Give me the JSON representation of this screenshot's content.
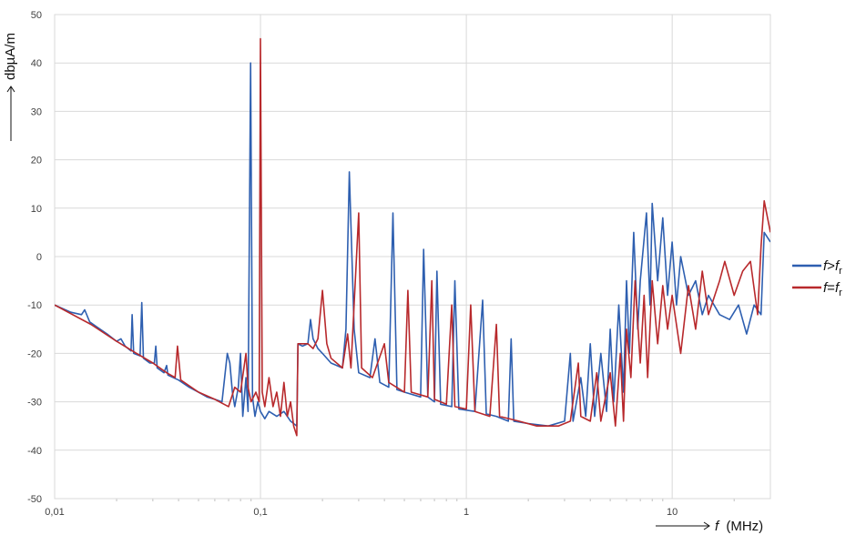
{
  "chart_data": {
    "type": "line",
    "x_scale": "log",
    "xlim": [
      0.01,
      30
    ],
    "ylim": [
      -50,
      50
    ],
    "grid": true,
    "legend_position": "right",
    "xlabel": {
      "prefix": "f",
      "unit": "(MHz)"
    },
    "ylabel": "dbµA/m",
    "x_ticks": [
      {
        "value": 0.01,
        "label": "0,01"
      },
      {
        "value": 0.1,
        "label": "0,1"
      },
      {
        "value": 1,
        "label": "1"
      },
      {
        "value": 10,
        "label": "10"
      }
    ],
    "y_ticks": [
      {
        "value": 50,
        "label": "50"
      },
      {
        "value": 40,
        "label": "40"
      },
      {
        "value": 30,
        "label": "30"
      },
      {
        "value": 20,
        "label": "20"
      },
      {
        "value": 10,
        "label": "10"
      },
      {
        "value": 0,
        "label": "0"
      },
      {
        "value": -10,
        "label": "-10"
      },
      {
        "value": -20,
        "label": "-20"
      },
      {
        "value": -30,
        "label": "-30"
      },
      {
        "value": -40,
        "label": "-40"
      },
      {
        "value": -50,
        "label": "-50"
      }
    ],
    "series": [
      {
        "name": "f>fr",
        "legend": {
          "main": "f",
          "rel": ">",
          "var": "f",
          "sub": "r"
        },
        "color": "#2e5fb0",
        "points": [
          [
            0.01,
            -10
          ],
          [
            0.012,
            -11.5
          ],
          [
            0.0135,
            -12
          ],
          [
            0.014,
            -11
          ],
          [
            0.0148,
            -13.5
          ],
          [
            0.016,
            -14.5
          ],
          [
            0.018,
            -16
          ],
          [
            0.02,
            -17.5
          ],
          [
            0.021,
            -17
          ],
          [
            0.022,
            -18.5
          ],
          [
            0.0235,
            -19.5
          ],
          [
            0.0238,
            -12
          ],
          [
            0.0242,
            -20
          ],
          [
            0.026,
            -20.5
          ],
          [
            0.0265,
            -9.5
          ],
          [
            0.027,
            -21
          ],
          [
            0.029,
            -22
          ],
          [
            0.0305,
            -22
          ],
          [
            0.031,
            -18.5
          ],
          [
            0.0315,
            -23
          ],
          [
            0.034,
            -24
          ],
          [
            0.035,
            -22.5
          ],
          [
            0.0355,
            -24.5
          ],
          [
            0.04,
            -25.5
          ],
          [
            0.045,
            -27
          ],
          [
            0.05,
            -28
          ],
          [
            0.055,
            -29
          ],
          [
            0.06,
            -29.5
          ],
          [
            0.065,
            -30
          ],
          [
            0.067,
            -25
          ],
          [
            0.069,
            -20
          ],
          [
            0.071,
            -22
          ],
          [
            0.073,
            -28
          ],
          [
            0.075,
            -31
          ],
          [
            0.078,
            -27
          ],
          [
            0.08,
            -20
          ],
          [
            0.082,
            -33
          ],
          [
            0.085,
            -25
          ],
          [
            0.087,
            -32
          ],
          [
            0.0895,
            40
          ],
          [
            0.0915,
            -29
          ],
          [
            0.094,
            -33
          ],
          [
            0.097,
            -30
          ],
          [
            0.1,
            -32
          ],
          [
            0.105,
            -33.5
          ],
          [
            0.11,
            -32
          ],
          [
            0.12,
            -33
          ],
          [
            0.13,
            -32
          ],
          [
            0.14,
            -34
          ],
          [
            0.15,
            -35
          ],
          [
            0.152,
            -18
          ],
          [
            0.16,
            -18.5
          ],
          [
            0.17,
            -18
          ],
          [
            0.175,
            -13
          ],
          [
            0.18,
            -17
          ],
          [
            0.19,
            -19
          ],
          [
            0.2,
            -20
          ],
          [
            0.22,
            -22
          ],
          [
            0.25,
            -23
          ],
          [
            0.26,
            -15
          ],
          [
            0.27,
            17.5
          ],
          [
            0.285,
            -15
          ],
          [
            0.3,
            -24
          ],
          [
            0.34,
            -25
          ],
          [
            0.36,
            -17
          ],
          [
            0.38,
            -26
          ],
          [
            0.42,
            -27
          ],
          [
            0.44,
            9
          ],
          [
            0.46,
            -27.5
          ],
          [
            0.5,
            -28
          ],
          [
            0.6,
            -29
          ],
          [
            0.62,
            1.5
          ],
          [
            0.65,
            -29
          ],
          [
            0.7,
            -30
          ],
          [
            0.72,
            -3
          ],
          [
            0.75,
            -30.5
          ],
          [
            0.85,
            -31
          ],
          [
            0.88,
            -5
          ],
          [
            0.92,
            -31.5
          ],
          [
            1.1,
            -32
          ],
          [
            1.2,
            -9
          ],
          [
            1.25,
            -32.5
          ],
          [
            1.4,
            -33
          ],
          [
            1.6,
            -34
          ],
          [
            1.65,
            -17
          ],
          [
            1.7,
            -34
          ],
          [
            2,
            -34.5
          ],
          [
            2.5,
            -35
          ],
          [
            3,
            -34
          ],
          [
            3.2,
            -20
          ],
          [
            3.3,
            -34
          ],
          [
            3.6,
            -25
          ],
          [
            3.8,
            -33
          ],
          [
            4,
            -18
          ],
          [
            4.2,
            -33
          ],
          [
            4.5,
            -20
          ],
          [
            4.8,
            -32
          ],
          [
            5,
            -15
          ],
          [
            5.2,
            -30
          ],
          [
            5.5,
            -10
          ],
          [
            5.8,
            -28
          ],
          [
            6,
            -5
          ],
          [
            6.2,
            -20
          ],
          [
            6.5,
            5
          ],
          [
            6.8,
            -15
          ],
          [
            7,
            -5
          ],
          [
            7.5,
            9
          ],
          [
            7.8,
            -10
          ],
          [
            8,
            11
          ],
          [
            8.5,
            -5
          ],
          [
            9,
            8
          ],
          [
            9.5,
            -8
          ],
          [
            10,
            3
          ],
          [
            10.5,
            -10
          ],
          [
            11,
            0
          ],
          [
            12,
            -8
          ],
          [
            13,
            -5
          ],
          [
            14,
            -12
          ],
          [
            15,
            -8
          ],
          [
            17,
            -12
          ],
          [
            19,
            -13
          ],
          [
            21,
            -10
          ],
          [
            23,
            -16
          ],
          [
            25,
            -10
          ],
          [
            27,
            -12
          ],
          [
            28,
            5
          ],
          [
            30,
            3
          ]
        ]
      },
      {
        "name": "f=fr",
        "legend": {
          "main": "f",
          "rel": "=",
          "var": "f",
          "sub": "r"
        },
        "color": "#b8292c",
        "points": [
          [
            0.01,
            -10
          ],
          [
            0.015,
            -14
          ],
          [
            0.02,
            -17.5
          ],
          [
            0.025,
            -20
          ],
          [
            0.03,
            -22
          ],
          [
            0.035,
            -24
          ],
          [
            0.0385,
            -25
          ],
          [
            0.0395,
            -18.5
          ],
          [
            0.041,
            -25.5
          ],
          [
            0.05,
            -28
          ],
          [
            0.06,
            -29.5
          ],
          [
            0.07,
            -31
          ],
          [
            0.075,
            -27
          ],
          [
            0.08,
            -28
          ],
          [
            0.085,
            -20
          ],
          [
            0.087,
            -27
          ],
          [
            0.09,
            -30
          ],
          [
            0.095,
            -28
          ],
          [
            0.0985,
            -30
          ],
          [
            0.1,
            45
          ],
          [
            0.102,
            -28
          ],
          [
            0.105,
            -31
          ],
          [
            0.11,
            -25
          ],
          [
            0.115,
            -31
          ],
          [
            0.12,
            -28
          ],
          [
            0.125,
            -33
          ],
          [
            0.13,
            -26
          ],
          [
            0.135,
            -33
          ],
          [
            0.14,
            -30
          ],
          [
            0.145,
            -35
          ],
          [
            0.15,
            -37
          ],
          [
            0.152,
            -18
          ],
          [
            0.17,
            -18
          ],
          [
            0.18,
            -19
          ],
          [
            0.19,
            -17
          ],
          [
            0.2,
            -7
          ],
          [
            0.21,
            -18
          ],
          [
            0.22,
            -21
          ],
          [
            0.25,
            -23
          ],
          [
            0.265,
            -16
          ],
          [
            0.275,
            -23
          ],
          [
            0.3,
            9
          ],
          [
            0.31,
            -23
          ],
          [
            0.35,
            -25
          ],
          [
            0.4,
            -18
          ],
          [
            0.42,
            -26
          ],
          [
            0.5,
            -28
          ],
          [
            0.52,
            -7
          ],
          [
            0.54,
            -28
          ],
          [
            0.65,
            -29
          ],
          [
            0.68,
            -5
          ],
          [
            0.7,
            -29.5
          ],
          [
            0.8,
            -30.5
          ],
          [
            0.85,
            -10
          ],
          [
            0.88,
            -31
          ],
          [
            1,
            -31.5
          ],
          [
            1.05,
            -10
          ],
          [
            1.1,
            -32
          ],
          [
            1.3,
            -33
          ],
          [
            1.4,
            -14
          ],
          [
            1.45,
            -33
          ],
          [
            1.8,
            -34
          ],
          [
            2.2,
            -35
          ],
          [
            2.8,
            -35
          ],
          [
            3.2,
            -34
          ],
          [
            3.5,
            -22
          ],
          [
            3.6,
            -33
          ],
          [
            4,
            -34
          ],
          [
            4.3,
            -24
          ],
          [
            4.5,
            -34
          ],
          [
            5,
            -24
          ],
          [
            5.3,
            -35
          ],
          [
            5.6,
            -20
          ],
          [
            5.8,
            -34
          ],
          [
            6,
            -15
          ],
          [
            6.3,
            -25
          ],
          [
            6.6,
            -5
          ],
          [
            7,
            -22
          ],
          [
            7.3,
            -8
          ],
          [
            7.6,
            -25
          ],
          [
            8,
            -5
          ],
          [
            8.5,
            -18
          ],
          [
            9,
            -6
          ],
          [
            9.5,
            -15
          ],
          [
            10,
            -8
          ],
          [
            11,
            -20
          ],
          [
            12,
            -6
          ],
          [
            13,
            -15
          ],
          [
            14,
            -3
          ],
          [
            15,
            -12
          ],
          [
            17,
            -5
          ],
          [
            18,
            -1
          ],
          [
            20,
            -8
          ],
          [
            22,
            -3
          ],
          [
            24,
            -1
          ],
          [
            26,
            -12
          ],
          [
            27,
            2
          ],
          [
            28,
            11.5
          ],
          [
            30,
            5
          ]
        ]
      }
    ]
  }
}
